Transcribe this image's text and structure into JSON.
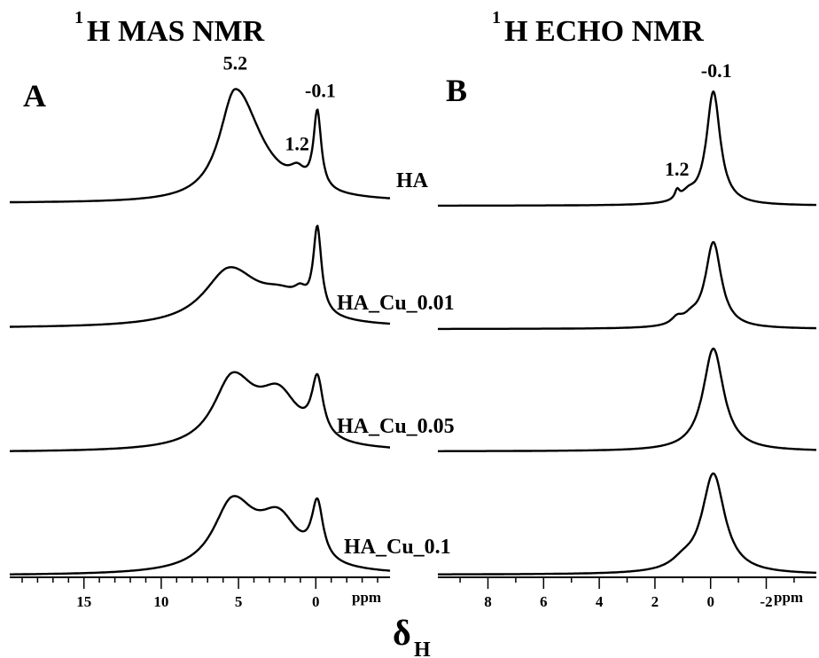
{
  "figure": {
    "xlabel_main": "δ",
    "xlabel_sub": "H",
    "unit": "ppm"
  },
  "samples": [
    "HA",
    "HA_Cu_0.01",
    "HA_Cu_0.05",
    "HA_Cu_0.1"
  ],
  "chart_data": [
    {
      "type": "line",
      "panel": "A",
      "title_sup": "1",
      "title": "H MAS NMR",
      "x_unit": "ppm",
      "x_reversed": true,
      "xlim": [
        19.8,
        -4.8
      ],
      "x_ticks": [
        "15",
        "10",
        "5",
        "0"
      ],
      "x_tick_values": [
        15,
        10,
        5,
        0
      ],
      "annotations": [
        {
          "text": "5.2",
          "x": 5.2,
          "series": "HA"
        },
        {
          "text": "1.2",
          "x": 1.2,
          "series": "HA"
        },
        {
          "text": "-0.1",
          "x": -0.1,
          "series": "HA"
        }
      ],
      "series": [
        {
          "name": "HA",
          "peaks": [
            {
              "pos": 5.2,
              "h": 1.0,
              "wl": 1.25,
              "wr": 2.0
            },
            {
              "pos": 1.2,
              "h": 0.12,
              "wl": 0.6,
              "wr": 0.6
            },
            {
              "pos": -0.1,
              "h": 0.68,
              "wl": 0.3,
              "wr": 0.3
            }
          ]
        },
        {
          "name": "HA_Cu_0.01",
          "peaks": [
            {
              "pos": 5.6,
              "h": 0.56,
              "wl": 2.0,
              "wr": 2.3
            },
            {
              "pos": 2.2,
              "h": 0.22,
              "wl": 1.8,
              "wr": 1.8
            },
            {
              "pos": 1.0,
              "h": 0.12,
              "wl": 0.5,
              "wr": 0.5
            },
            {
              "pos": -0.1,
              "h": 0.85,
              "wl": 0.32,
              "wr": 0.32
            }
          ]
        },
        {
          "name": "HA_Cu_0.05",
          "peaks": [
            {
              "pos": 5.4,
              "h": 0.62,
              "wl": 1.5,
              "wr": 1.8
            },
            {
              "pos": 2.4,
              "h": 0.43,
              "wl": 1.6,
              "wr": 1.6
            },
            {
              "pos": -0.1,
              "h": 0.52,
              "wl": 0.45,
              "wr": 0.45
            }
          ]
        },
        {
          "name": "HA_Cu_0.1",
          "peaks": [
            {
              "pos": 5.4,
              "h": 0.6,
              "wl": 1.5,
              "wr": 1.8
            },
            {
              "pos": 2.4,
              "h": 0.42,
              "wl": 1.6,
              "wr": 1.6
            },
            {
              "pos": -0.1,
              "h": 0.5,
              "wl": 0.45,
              "wr": 0.45
            }
          ]
        }
      ]
    },
    {
      "type": "line",
      "panel": "B",
      "title_sup": "1",
      "title": "H ECHO NMR",
      "x_unit": "ppm",
      "x_reversed": true,
      "xlim": [
        9.8,
        -3.8
      ],
      "x_ticks": [
        "8",
        "6",
        "4",
        "2",
        "0",
        "-2"
      ],
      "x_tick_values": [
        8,
        6,
        4,
        2,
        0,
        -2
      ],
      "annotations": [
        {
          "text": "1.2",
          "x": 1.2,
          "series": "HA"
        },
        {
          "text": "-0.1",
          "x": -0.1,
          "series": "HA"
        }
      ],
      "series": [
        {
          "name": "HA",
          "peaks": [
            {
              "pos": -0.1,
              "h": 1.0,
              "wl": 0.3,
              "wr": 0.3
            },
            {
              "pos": 1.2,
              "h": 0.08,
              "wl": 0.1,
              "wr": 0.1
            },
            {
              "pos": 0.8,
              "h": 0.07,
              "wl": 0.3,
              "wr": 0.3
            }
          ]
        },
        {
          "name": "HA_Cu_0.01",
          "peaks": [
            {
              "pos": -0.1,
              "h": 0.95,
              "wl": 0.35,
              "wr": 0.35
            },
            {
              "pos": 1.2,
              "h": 0.08,
              "wl": 0.25,
              "wr": 0.25
            },
            {
              "pos": 0.7,
              "h": 0.07,
              "wl": 0.3,
              "wr": 0.3
            }
          ]
        },
        {
          "name": "HA_Cu_0.05",
          "peaks": [
            {
              "pos": -0.1,
              "h": 0.92,
              "wl": 0.45,
              "wr": 0.45
            }
          ]
        },
        {
          "name": "HA_Cu_0.1",
          "peaks": [
            {
              "pos": -0.1,
              "h": 0.88,
              "wl": 0.5,
              "wr": 0.5
            },
            {
              "pos": 1.0,
              "h": 0.07,
              "wl": 0.5,
              "wr": 0.5
            }
          ]
        }
      ]
    }
  ]
}
